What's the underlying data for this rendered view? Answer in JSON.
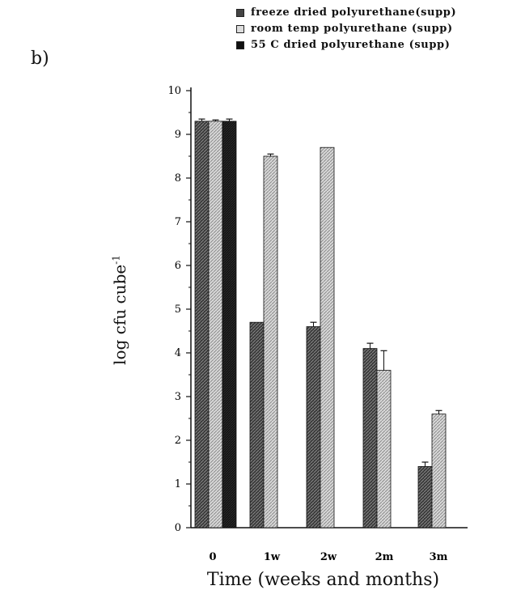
{
  "panel_label": "b)",
  "colors": {
    "freeze": "#4a4a4a",
    "roomtemp": "#c9c9c9",
    "c55": "#161616"
  },
  "chart_data": {
    "type": "bar",
    "title": "",
    "xlabel": "Time (weeks and months)",
    "ylabel": "log cfu cube",
    "ylabel_sup": "-1",
    "categories": [
      "0",
      "1w",
      "2w",
      "2m",
      "3m"
    ],
    "ylim": [
      0,
      10
    ],
    "yticks": [
      "0",
      "1",
      "2",
      "3",
      "4",
      "5",
      "6",
      "7",
      "8",
      "9",
      "10"
    ],
    "legend_position": "top-right",
    "grid": false,
    "series": [
      {
        "name": "freeze dried polyurethane(supp)",
        "key": "freeze",
        "pattern": "dark-hatch",
        "values": [
          9.3,
          4.7,
          4.6,
          4.1,
          1.4
        ],
        "errors": [
          0.05,
          0.0,
          0.1,
          0.12,
          0.1
        ]
      },
      {
        "name": "room temp polyurethane (supp)",
        "key": "roomtemp",
        "pattern": "light-hatch",
        "values": [
          9.3,
          8.5,
          8.7,
          3.6,
          2.6
        ],
        "errors": [
          0.03,
          0.05,
          0.0,
          0.45,
          0.08
        ]
      },
      {
        "name": "55 C dried polyurethane (supp)",
        "key": "c55",
        "pattern": "solid-dark",
        "values": [
          9.3,
          null,
          null,
          null,
          null
        ],
        "errors": [
          0.05,
          null,
          null,
          null,
          null
        ]
      }
    ]
  }
}
